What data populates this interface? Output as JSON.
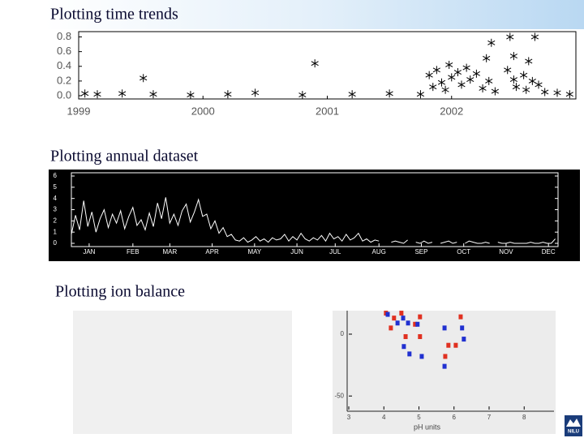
{
  "chart_data": [
    {
      "type": "scatter",
      "title": "Plotting time trends",
      "marker": "asterisk",
      "color": "#000000",
      "x": [
        1999.05,
        1999.15,
        1999.35,
        1999.6,
        1999.9,
        2000.2,
        2000.42,
        2000.8,
        2001.2,
        2001.5,
        2001.75,
        2002.95,
        1999.52,
        2000.9,
        2002.28,
        2002.32,
        2002.47,
        2002.67,
        2002.5,
        2002.62,
        2001.82,
        2001.85,
        2001.88,
        2001.92,
        2001.95,
        2001.98,
        2002.0,
        2002.05,
        2002.08,
        2002.12,
        2002.15,
        2002.2,
        2002.25,
        2002.3,
        2002.35,
        2002.45,
        2002.5,
        2002.52,
        2002.58,
        2002.6,
        2002.65,
        2002.7,
        2002.75,
        2002.85
      ],
      "values": [
        0.03,
        0.02,
        0.03,
        0.02,
        0.01,
        0.02,
        0.04,
        0.01,
        0.02,
        0.03,
        0.02,
        0.02,
        0.24,
        0.44,
        0.51,
        0.72,
        0.8,
        0.8,
        0.54,
        0.47,
        0.28,
        0.12,
        0.35,
        0.18,
        0.08,
        0.42,
        0.25,
        0.32,
        0.15,
        0.38,
        0.22,
        0.3,
        0.1,
        0.2,
        0.06,
        0.35,
        0.22,
        0.12,
        0.28,
        0.08,
        0.2,
        0.15,
        0.05,
        0.04
      ],
      "xlim": [
        1999,
        2003
      ],
      "xticks": [
        1999,
        2000,
        2001,
        2002
      ],
      "ylim": [
        0,
        0.85
      ],
      "yticks": [
        {
          "value": 0,
          "label": "0.0"
        },
        0.2,
        0.4,
        0.6,
        0.8
      ]
    },
    {
      "type": "line",
      "title": "Plotting annual dataset",
      "color": "#ffffff",
      "background": "#000000",
      "x": [
        0,
        3,
        6,
        9,
        12,
        15,
        18,
        21,
        24,
        27,
        30,
        33,
        36,
        39,
        42,
        45,
        48,
        51,
        54,
        57,
        60,
        63,
        66,
        69,
        72,
        75,
        78,
        81,
        84,
        87,
        90,
        93,
        96,
        99,
        102,
        105,
        108,
        111,
        114,
        117,
        120,
        123,
        126,
        129,
        132,
        135,
        138,
        141,
        144,
        147,
        150,
        153,
        156,
        159,
        162,
        165,
        168,
        171,
        174,
        177,
        180,
        183,
        186,
        189,
        192,
        195,
        198,
        201,
        204,
        207,
        210,
        213,
        216,
        219,
        222,
        225,
        228,
        231,
        234,
        237,
        240,
        243,
        246,
        249,
        252,
        255,
        258,
        261,
        264,
        267,
        270,
        273,
        276,
        279,
        282,
        285,
        288,
        291,
        294,
        297,
        300,
        303,
        306,
        309,
        312,
        315,
        318,
        321,
        324,
        327,
        330,
        333,
        336,
        339,
        342,
        345,
        348,
        351,
        354
      ],
      "values": [
        0.8,
        2.5,
        1.2,
        3.8,
        1.5,
        2.8,
        1.0,
        2.2,
        3.0,
        1.4,
        2.6,
        1.8,
        2.9,
        1.3,
        2.4,
        3.2,
        1.6,
        2.1,
        1.2,
        2.7,
        1.5,
        3.6,
        2.2,
        4.1,
        1.8,
        2.6,
        1.6,
        2.9,
        3.5,
        1.9,
        2.8,
        3.9,
        2.4,
        2.6,
        1.3,
        2.0,
        0.9,
        1.4,
        0.6,
        0.8,
        0.3,
        0.2,
        0.5,
        0.1,
        0.3,
        0.6,
        0.2,
        0.4,
        0.1,
        0.5,
        0.3,
        0.4,
        0.8,
        0.2,
        0.6,
        0.3,
        0.9,
        0.4,
        0.2,
        0.5,
        0.3,
        0.7,
        0.2,
        0.9,
        0.4,
        0.6,
        0.2,
        0.8,
        0.3,
        0.5,
        0.9,
        0.2,
        0.4,
        0.1,
        0.3,
        0.2,
        null,
        null,
        0.1,
        0.2,
        0.1,
        0.0,
        0.3,
        null,
        0.1,
        0.0,
        0.2,
        0.0,
        0.1,
        null,
        0.0,
        0.1,
        0.2,
        0.0,
        0.1,
        null,
        0.0,
        0.2,
        0.1,
        0.0,
        0.0,
        0.1,
        0.0,
        null,
        0.1,
        0.0,
        0.0,
        0.1,
        0.0,
        0.0,
        0.0,
        0.0,
        0.1,
        0.0,
        0.0,
        0.1,
        0.0,
        0.0,
        0.4
      ],
      "xlim": [
        0,
        356
      ],
      "xticks": [
        {
          "value": 13,
          "label": "JAN"
        },
        {
          "value": 45,
          "label": "FEB"
        },
        {
          "value": 72,
          "label": "MAR"
        },
        {
          "value": 103,
          "label": "APR"
        },
        {
          "value": 134,
          "label": "MAY"
        },
        {
          "value": 165,
          "label": "JUN"
        },
        {
          "value": 193,
          "label": "JUL"
        },
        {
          "value": 225,
          "label": "AUG"
        },
        {
          "value": 256,
          "label": "SEP"
        },
        {
          "value": 287,
          "label": "OCT"
        },
        {
          "value": 318,
          "label": "NOV"
        },
        {
          "value": 349,
          "label": "DEC"
        }
      ],
      "ylim": [
        0,
        6
      ],
      "yticks": [
        0,
        1,
        2,
        3,
        4,
        5,
        6
      ]
    },
    {
      "type": "scatter",
      "title": "Plotting ion balance",
      "marker": "square",
      "xlabel": "pH units",
      "series": [
        {
          "color": "#e03020",
          "x": [
            4.06,
            4.5,
            5.03,
            6.19,
            4.2,
            4.89,
            4.62,
            5.03,
            5.84,
            6.05,
            5.75,
            4.29
          ],
          "values": [
            17,
            17,
            14,
            14,
            5,
            8,
            -2,
            -2,
            -9,
            -9,
            -18,
            13
          ]
        },
        {
          "color": "#2030d0",
          "x": [
            4.11,
            4.55,
            4.69,
            4.96,
            5.73,
            6.23,
            6.28,
            4.57,
            4.73,
            5.08,
            5.73,
            4.39
          ],
          "values": [
            16,
            13,
            9,
            8,
            5,
            5,
            -4,
            -10,
            -16,
            -18,
            -26,
            9
          ]
        }
      ],
      "xlim": [
        3,
        8.85
      ],
      "xticks": [
        3,
        4,
        5,
        6,
        7,
        8
      ],
      "ylim": [
        -61,
        19
      ],
      "yticks": [
        0,
        -50
      ]
    }
  ],
  "logo": {
    "text": "NILU"
  }
}
